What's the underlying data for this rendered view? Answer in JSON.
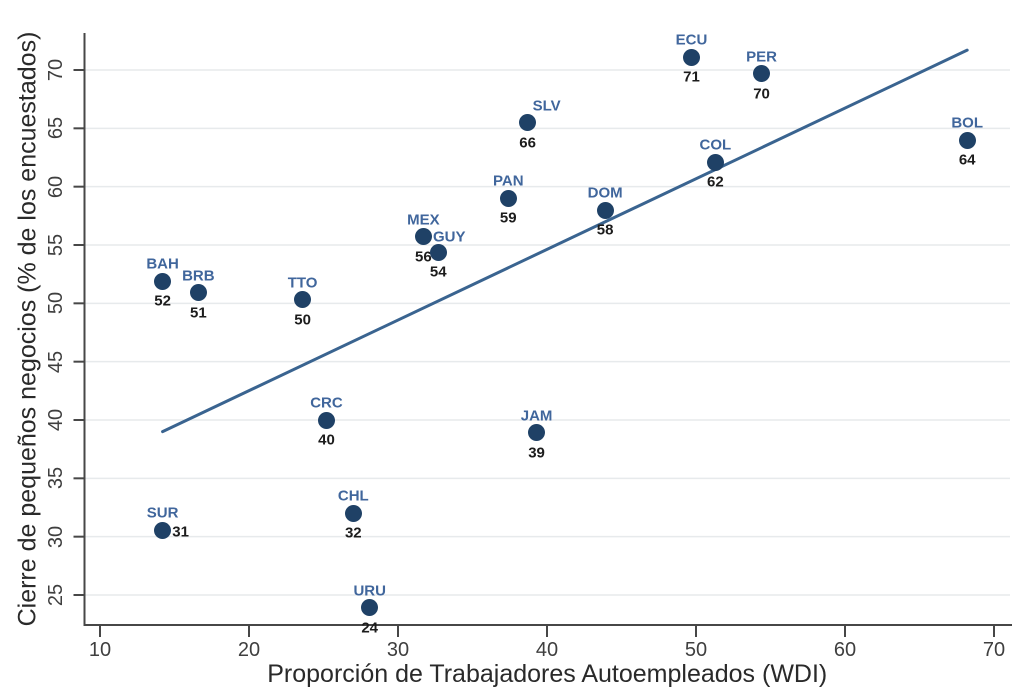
{
  "chart_data": {
    "type": "scatter",
    "title": "",
    "xlabel": "Proporción de Trabajadores Autoempleados (WDI)",
    "ylabel": "Cierre de pequeños negocios (% de los encuestados)",
    "x_ticks": [
      10,
      20,
      30,
      40,
      50,
      60,
      70
    ],
    "y_ticks": [
      25,
      30,
      35,
      40,
      45,
      50,
      55,
      60,
      65,
      70
    ],
    "xlim": [
      9.0,
      71.1
    ],
    "ylim": [
      22.4,
      73.2
    ],
    "grid": "horizontal-only",
    "legend": "none",
    "points": [
      {
        "code": "BAH",
        "x": 14.2,
        "y": 51.9,
        "value": 52
      },
      {
        "code": "BRB",
        "x": 16.6,
        "y": 50.9,
        "value": 51
      },
      {
        "code": "TTO",
        "x": 23.6,
        "y": 50.3,
        "value": 50
      },
      {
        "code": "CRC",
        "x": 25.2,
        "y": 40.0,
        "value": 40
      },
      {
        "code": "CHL",
        "x": 27.0,
        "y": 32.0,
        "value": 32
      },
      {
        "code": "URU",
        "x": 28.1,
        "y": 23.9,
        "value": 24
      },
      {
        "code": "MEX",
        "x": 31.7,
        "y": 55.7,
        "value": 56
      },
      {
        "code": "GUY",
        "x": 32.7,
        "y": 54.4,
        "value": 54,
        "code_dx": 11,
        "code_dy": -15
      },
      {
        "code": "PAN",
        "x": 37.4,
        "y": 59.0,
        "value": 59
      },
      {
        "code": "SLV",
        "x": 38.7,
        "y": 65.5,
        "value": 66,
        "code_dx": 19
      },
      {
        "code": "JAM",
        "x": 39.3,
        "y": 38.9,
        "value": 39
      },
      {
        "code": "DOM",
        "x": 43.9,
        "y": 58.0,
        "value": 58
      },
      {
        "code": "ECU",
        "x": 49.7,
        "y": 71.1,
        "value": 71
      },
      {
        "code": "COL",
        "x": 51.3,
        "y": 62.1,
        "value": 62
      },
      {
        "code": "PER",
        "x": 54.4,
        "y": 69.7,
        "value": 70
      },
      {
        "code": "BOL",
        "x": 68.2,
        "y": 64.0,
        "value": 64
      },
      {
        "code": "SUR",
        "x": 14.2,
        "y": 30.5,
        "value": 31,
        "code_dy": -18,
        "value_dx": 18,
        "value_dy": 1
      }
    ],
    "trend_line": {
      "x1": 14.2,
      "y1": 39.0,
      "x2": 68.2,
      "y2": 71.7
    },
    "colors": {
      "marker": "#1f4166",
      "code_label": "#40669c",
      "value_label": "#1c1c1c",
      "trend_line": "#3a6490",
      "grid": "#e7eaec",
      "axis": "#474747",
      "tick_label": "#3f3f3f",
      "axis_title": "#2a2a2a",
      "background": "#ffffff"
    }
  }
}
